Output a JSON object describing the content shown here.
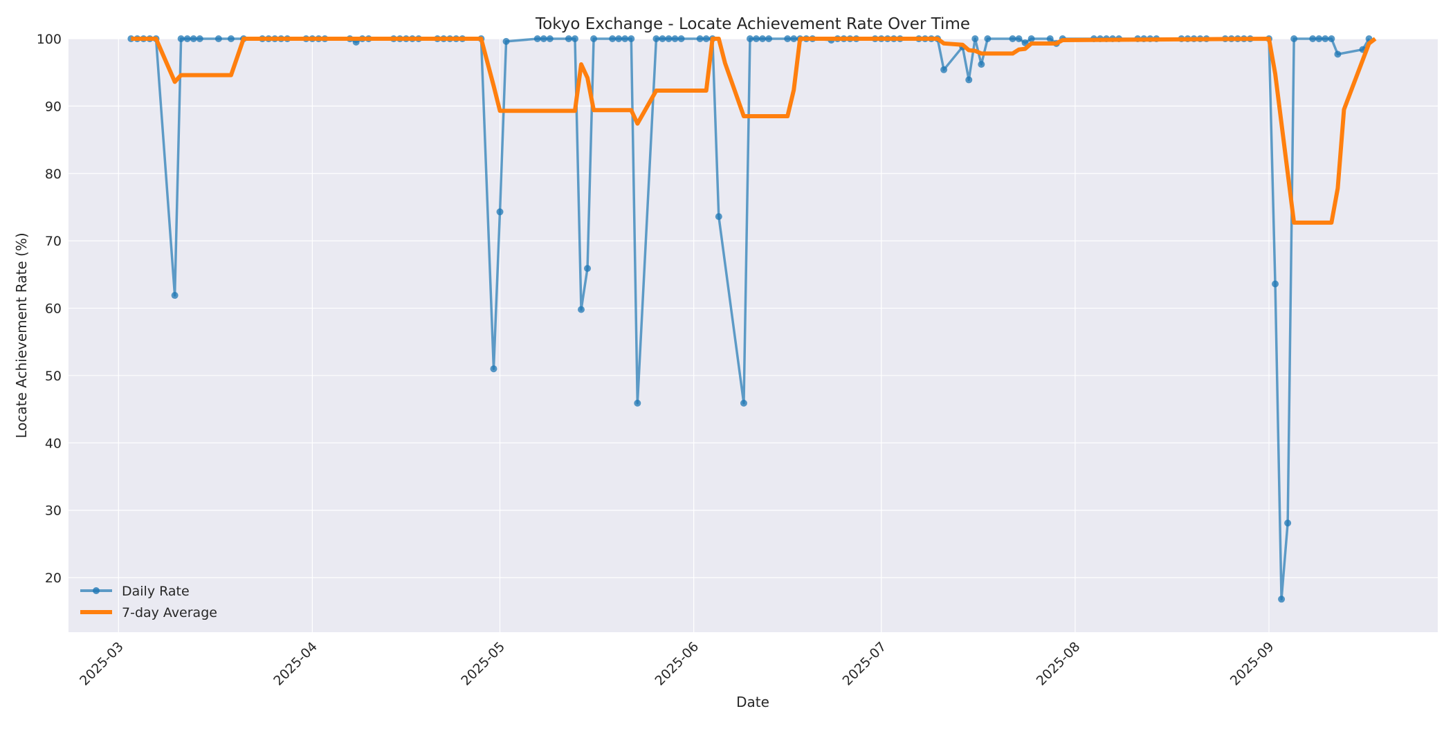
{
  "chart_data": {
    "type": "line",
    "title": "Tokyo Exchange - Locate Achievement Rate Over Time",
    "xlabel": "Date",
    "ylabel": "Locate Achievement Rate (%)",
    "ylim": [
      11.9,
      100
    ],
    "xlim": [
      "2025-02-21",
      "2025-09-28"
    ],
    "yticks": [
      20,
      30,
      40,
      50,
      60,
      70,
      80,
      90,
      100
    ],
    "xticks": [
      "2025-03",
      "2025-04",
      "2025-05",
      "2025-06",
      "2025-07",
      "2025-08",
      "2025-09"
    ],
    "xtick_dates": [
      "2025-03-01",
      "2025-04-01",
      "2025-05-01",
      "2025-06-01",
      "2025-07-01",
      "2025-08-01",
      "2025-09-01"
    ],
    "grid": true,
    "legend_position": "lower left",
    "background": "#eaeaf2",
    "series": [
      {
        "name": "Daily Rate",
        "color": "#1f77b4",
        "marker": "o",
        "points": [
          [
            "2025-03-03",
            100
          ],
          [
            "2025-03-04",
            100
          ],
          [
            "2025-03-05",
            100
          ],
          [
            "2025-03-06",
            100
          ],
          [
            "2025-03-07",
            100
          ],
          [
            "2025-03-10",
            61.9
          ],
          [
            "2025-03-11",
            100
          ],
          [
            "2025-03-12",
            100
          ],
          [
            "2025-03-13",
            100
          ],
          [
            "2025-03-14",
            100
          ],
          [
            "2025-03-17",
            100
          ],
          [
            "2025-03-19",
            100
          ],
          [
            "2025-03-21",
            100
          ],
          [
            "2025-03-24",
            100
          ],
          [
            "2025-03-25",
            100
          ],
          [
            "2025-03-26",
            100
          ],
          [
            "2025-03-27",
            100
          ],
          [
            "2025-03-28",
            100
          ],
          [
            "2025-03-31",
            100
          ],
          [
            "2025-04-01",
            100
          ],
          [
            "2025-04-02",
            100
          ],
          [
            "2025-04-03",
            100
          ],
          [
            "2025-04-07",
            100
          ],
          [
            "2025-04-08",
            99.5
          ],
          [
            "2025-04-09",
            100
          ],
          [
            "2025-04-10",
            100
          ],
          [
            "2025-04-14",
            100
          ],
          [
            "2025-04-15",
            100
          ],
          [
            "2025-04-16",
            100
          ],
          [
            "2025-04-17",
            100
          ],
          [
            "2025-04-18",
            100
          ],
          [
            "2025-04-21",
            100
          ],
          [
            "2025-04-22",
            100
          ],
          [
            "2025-04-23",
            100
          ],
          [
            "2025-04-24",
            100
          ],
          [
            "2025-04-25",
            100
          ],
          [
            "2025-04-28",
            100
          ],
          [
            "2025-04-30",
            51.0
          ],
          [
            "2025-05-01",
            74.3
          ],
          [
            "2025-05-02",
            99.6
          ],
          [
            "2025-05-07",
            100
          ],
          [
            "2025-05-08",
            100
          ],
          [
            "2025-05-09",
            100
          ],
          [
            "2025-05-12",
            100
          ],
          [
            "2025-05-13",
            100
          ],
          [
            "2025-05-14",
            59.8
          ],
          [
            "2025-05-15",
            65.9
          ],
          [
            "2025-05-16",
            100
          ],
          [
            "2025-05-19",
            100
          ],
          [
            "2025-05-20",
            100
          ],
          [
            "2025-05-21",
            100
          ],
          [
            "2025-05-22",
            100
          ],
          [
            "2025-05-23",
            45.9
          ],
          [
            "2025-05-26",
            100
          ],
          [
            "2025-05-27",
            100
          ],
          [
            "2025-05-28",
            100
          ],
          [
            "2025-05-29",
            100
          ],
          [
            "2025-05-30",
            100
          ],
          [
            "2025-06-02",
            100
          ],
          [
            "2025-06-03",
            100
          ],
          [
            "2025-06-04",
            100
          ],
          [
            "2025-06-05",
            73.6
          ],
          [
            "2025-06-09",
            45.9
          ],
          [
            "2025-06-10",
            100
          ],
          [
            "2025-06-11",
            100
          ],
          [
            "2025-06-12",
            100
          ],
          [
            "2025-06-13",
            100
          ],
          [
            "2025-06-16",
            100
          ],
          [
            "2025-06-17",
            100
          ],
          [
            "2025-06-18",
            100
          ],
          [
            "2025-06-19",
            100
          ],
          [
            "2025-06-20",
            100
          ],
          [
            "2025-06-23",
            99.8
          ],
          [
            "2025-06-24",
            100
          ],
          [
            "2025-06-25",
            100
          ],
          [
            "2025-06-26",
            100
          ],
          [
            "2025-06-27",
            100
          ],
          [
            "2025-06-30",
            100
          ],
          [
            "2025-07-01",
            100
          ],
          [
            "2025-07-02",
            100
          ],
          [
            "2025-07-03",
            100
          ],
          [
            "2025-07-04",
            100
          ],
          [
            "2025-07-07",
            100
          ],
          [
            "2025-07-08",
            100
          ],
          [
            "2025-07-09",
            100
          ],
          [
            "2025-07-10",
            100
          ],
          [
            "2025-07-11",
            95.4
          ],
          [
            "2025-07-14",
            98.8
          ],
          [
            "2025-07-15",
            93.9
          ],
          [
            "2025-07-16",
            100
          ],
          [
            "2025-07-17",
            96.2
          ],
          [
            "2025-07-18",
            100
          ],
          [
            "2025-07-22",
            100
          ],
          [
            "2025-07-23",
            100
          ],
          [
            "2025-07-24",
            99.4
          ],
          [
            "2025-07-25",
            100
          ],
          [
            "2025-07-28",
            100
          ],
          [
            "2025-07-29",
            99.3
          ],
          [
            "2025-07-30",
            100
          ],
          [
            "2025-08-04",
            100
          ],
          [
            "2025-08-05",
            100
          ],
          [
            "2025-08-06",
            100
          ],
          [
            "2025-08-07",
            100
          ],
          [
            "2025-08-08",
            100
          ],
          [
            "2025-08-11",
            100
          ],
          [
            "2025-08-12",
            100
          ],
          [
            "2025-08-13",
            100
          ],
          [
            "2025-08-14",
            100
          ],
          [
            "2025-08-18",
            100
          ],
          [
            "2025-08-19",
            100
          ],
          [
            "2025-08-20",
            100
          ],
          [
            "2025-08-21",
            100
          ],
          [
            "2025-08-22",
            100
          ],
          [
            "2025-08-25",
            100
          ],
          [
            "2025-08-26",
            100
          ],
          [
            "2025-08-27",
            100
          ],
          [
            "2025-08-28",
            100
          ],
          [
            "2025-08-29",
            100
          ],
          [
            "2025-09-01",
            100
          ],
          [
            "2025-09-02",
            63.6
          ],
          [
            "2025-09-03",
            16.8
          ],
          [
            "2025-09-04",
            28.1
          ],
          [
            "2025-09-05",
            100
          ],
          [
            "2025-09-08",
            100
          ],
          [
            "2025-09-09",
            100
          ],
          [
            "2025-09-10",
            100
          ],
          [
            "2025-09-11",
            100
          ],
          [
            "2025-09-12",
            97.7
          ],
          [
            "2025-09-16",
            98.4
          ],
          [
            "2025-09-17",
            100
          ]
        ]
      },
      {
        "name": "7-day Average",
        "color": "#ff7f0e",
        "points": [
          [
            "2025-03-03",
            100
          ],
          [
            "2025-03-07",
            100
          ],
          [
            "2025-03-10",
            93.6
          ],
          [
            "2025-03-11",
            94.6
          ],
          [
            "2025-03-17",
            94.6
          ],
          [
            "2025-03-19",
            94.6
          ],
          [
            "2025-03-21",
            100
          ],
          [
            "2025-04-28",
            100
          ],
          [
            "2025-04-30",
            93.0
          ],
          [
            "2025-05-01",
            89.3
          ],
          [
            "2025-05-13",
            89.3
          ],
          [
            "2025-05-14",
            96.2
          ],
          [
            "2025-05-15",
            94.2
          ],
          [
            "2025-05-16",
            89.4
          ],
          [
            "2025-05-22",
            89.4
          ],
          [
            "2025-05-23",
            87.4
          ],
          [
            "2025-05-26",
            92.3
          ],
          [
            "2025-06-03",
            92.3
          ],
          [
            "2025-06-04",
            100
          ],
          [
            "2025-06-05",
            100
          ],
          [
            "2025-06-06",
            96.4
          ],
          [
            "2025-06-09",
            88.5
          ],
          [
            "2025-06-16",
            88.5
          ],
          [
            "2025-06-17",
            92.4
          ],
          [
            "2025-06-18",
            100
          ],
          [
            "2025-07-10",
            100
          ],
          [
            "2025-07-11",
            99.3
          ],
          [
            "2025-07-14",
            99.1
          ],
          [
            "2025-07-15",
            98.3
          ],
          [
            "2025-07-16",
            98.2
          ],
          [
            "2025-07-17",
            97.8
          ],
          [
            "2025-07-22",
            97.8
          ],
          [
            "2025-07-23",
            98.4
          ],
          [
            "2025-07-24",
            98.5
          ],
          [
            "2025-07-25",
            99.3
          ],
          [
            "2025-07-29",
            99.3
          ],
          [
            "2025-07-30",
            99.8
          ],
          [
            "2025-09-01",
            100
          ],
          [
            "2025-09-02",
            94.8
          ],
          [
            "2025-09-05",
            72.7
          ],
          [
            "2025-09-11",
            72.7
          ],
          [
            "2025-09-12",
            77.8
          ],
          [
            "2025-09-13",
            89.5
          ],
          [
            "2025-09-17",
            99.3
          ],
          [
            "2025-09-18",
            100
          ]
        ]
      }
    ]
  },
  "legend": {
    "items": [
      {
        "label": "Daily Rate",
        "color": "#1f77b4"
      },
      {
        "label": "7-day Average",
        "color": "#ff7f0e"
      }
    ]
  }
}
